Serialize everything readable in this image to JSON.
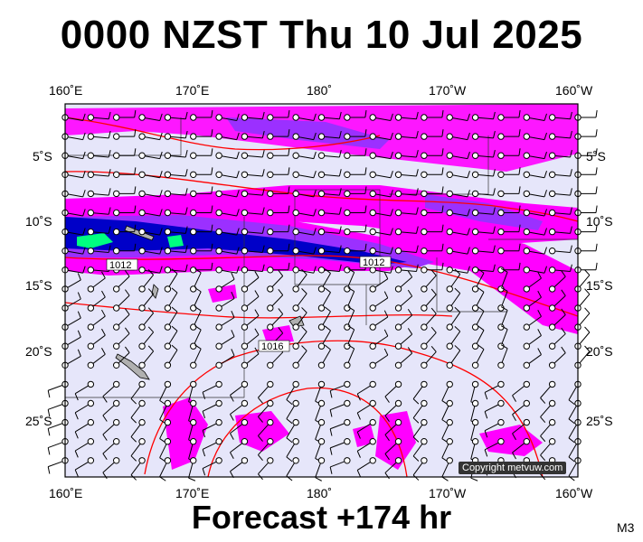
{
  "title": "0000 NZST Thu 10 Jul 2025",
  "subtitle": "Forecast +174 hr",
  "code": "M3",
  "copyright": "Copyright metvuw.com",
  "axes": {
    "top_longitudes": [
      "160˚E",
      "170˚E",
      "180˚",
      "170˚W",
      "160˚W"
    ],
    "bottom_longitudes": [
      "160˚E",
      "170˚E",
      "180˚",
      "170˚W",
      "160˚W"
    ],
    "left_latitudes": [
      "5˚S",
      "10˚S",
      "15˚S",
      "20˚S",
      "25˚S"
    ],
    "right_latitudes": [
      "5˚S",
      "10˚S",
      "15˚S",
      "20˚S",
      "25˚S"
    ]
  },
  "isobar_labels": [
    "1012",
    "1012",
    "1016"
  ],
  "colors": {
    "ocean": "#e6e6fa",
    "rain_light": "#ff00ff",
    "rain_medium": "#9b30ff",
    "rain_heavy": "#0000c8",
    "rain_extreme": "#00ff80",
    "isobar": "#ff0000",
    "land": "#b0b0b0"
  }
}
